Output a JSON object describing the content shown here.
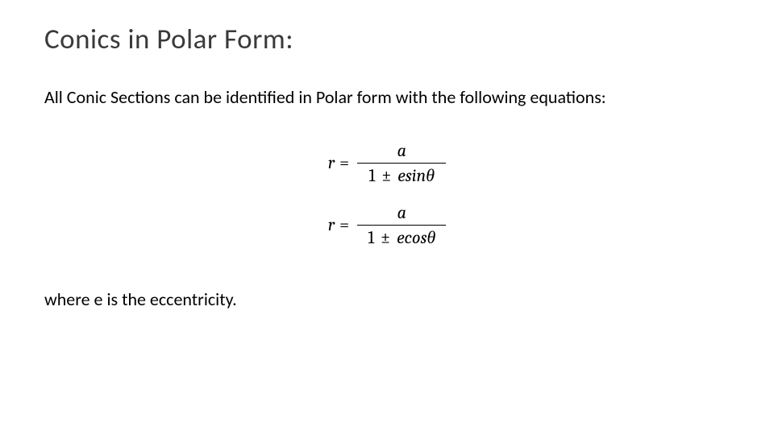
{
  "title": "Conics in Polar Form:",
  "intro_text": "All Conic Sections can be identified in Polar form with the following equations:",
  "equation1": {
    "lhs_var": "r",
    "equals": "=",
    "numerator": "a",
    "denom_one": "1",
    "denom_pm": "±",
    "denom_e": "e",
    "denom_func": "sin",
    "denom_theta": "θ"
  },
  "equation2": {
    "lhs_var": "r",
    "equals": "=",
    "numerator": "a",
    "denom_one": "1",
    "denom_pm": "±",
    "denom_e": "e",
    "denom_func": "cos",
    "denom_theta": "θ"
  },
  "closing_text": "where e is the eccentricity.",
  "colors": {
    "background": "#ffffff",
    "title_color": "#3a3a3a",
    "text_color": "#000000"
  },
  "typography": {
    "title_fontsize": 35,
    "body_fontsize": 22,
    "equation_fontsize": 22,
    "body_font": "Calibri",
    "math_font": "Cambria"
  }
}
